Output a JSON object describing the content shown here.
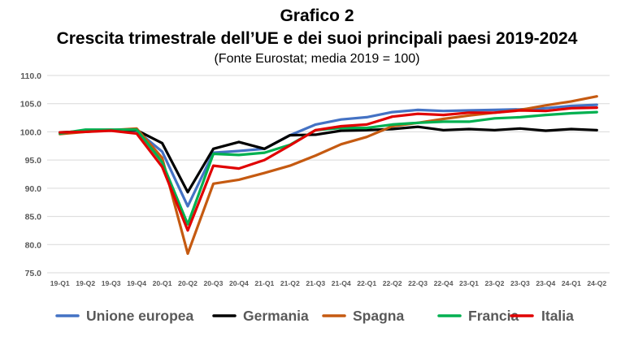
{
  "chart_data": {
    "type": "line",
    "title_line1": "Grafico 2",
    "title_line2": "Crescita trimestrale dell’UE e dei suoi principali paesi 2019-2024",
    "subtitle": "(Fonte Eurostat; media 2019 = 100)",
    "categories": [
      "19-Q1",
      "19-Q2",
      "19-Q3",
      "19-Q4",
      "20-Q1",
      "20-Q2",
      "20-Q3",
      "20-Q4",
      "21-Q1",
      "21-Q2",
      "21-Q3",
      "21-Q4",
      "22-Q1",
      "22-Q2",
      "22-Q3",
      "22-Q4",
      "23-Q1",
      "23-Q2",
      "23-Q3",
      "23-Q4",
      "24-Q1",
      "24-Q2"
    ],
    "ylim": [
      75,
      110
    ],
    "yticks": [
      "75.0",
      "80.0",
      "85.0",
      "90.0",
      "95.0",
      "100.0",
      "105.0",
      "110.0"
    ],
    "grid": true,
    "legend_position": "bottom",
    "series": [
      {
        "name": "Unione europea",
        "color": "#4472C4",
        "values": [
          99.8,
          100.2,
          100.3,
          100.2,
          96.5,
          86.8,
          96.3,
          96.6,
          97.0,
          99.4,
          101.3,
          102.2,
          102.6,
          103.5,
          103.9,
          103.7,
          103.8,
          103.9,
          104.0,
          104.2,
          104.6,
          104.8
        ]
      },
      {
        "name": "Germania",
        "color": "#000000",
        "values": [
          99.9,
          100.1,
          100.3,
          100.3,
          98.0,
          89.3,
          97.0,
          98.2,
          97.0,
          99.4,
          99.5,
          100.2,
          100.3,
          100.5,
          100.9,
          100.3,
          100.5,
          100.3,
          100.6,
          100.2,
          100.5,
          100.3
        ]
      },
      {
        "name": "Spagna",
        "color": "#C55A11",
        "values": [
          99.6,
          100.0,
          100.3,
          100.6,
          95.4,
          78.4,
          90.8,
          91.5,
          92.7,
          94.0,
          95.8,
          97.8,
          99.1,
          101.0,
          101.6,
          102.3,
          102.9,
          103.4,
          103.9,
          104.7,
          105.4,
          106.3
        ]
      },
      {
        "name": "Francia",
        "color": "#00B050",
        "values": [
          99.7,
          100.4,
          100.4,
          100.4,
          94.6,
          83.6,
          96.1,
          95.9,
          96.3,
          97.7,
          100.3,
          100.7,
          100.7,
          101.3,
          101.6,
          101.8,
          101.8,
          102.4,
          102.6,
          103.0,
          103.3,
          103.5
        ]
      },
      {
        "name": "Italia",
        "color": "#E00000",
        "values": [
          99.9,
          100.0,
          100.2,
          99.7,
          93.8,
          82.5,
          94.0,
          93.5,
          95.0,
          97.6,
          100.3,
          101.0,
          101.3,
          102.7,
          103.2,
          103.0,
          103.4,
          103.4,
          103.8,
          103.7,
          104.2,
          104.3
        ]
      }
    ]
  }
}
